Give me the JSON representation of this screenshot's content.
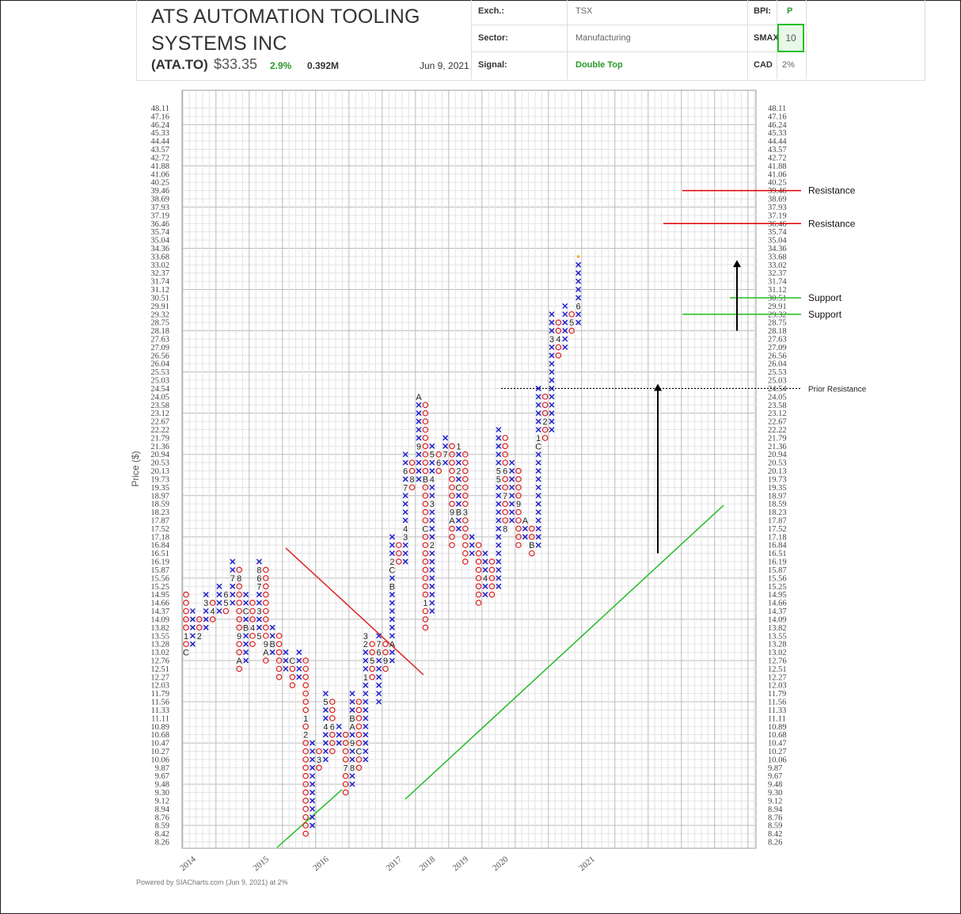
{
  "header": {
    "company": "ATS AUTOMATION TOOLING SYSTEMS INC",
    "title_line1": "ATS AUTOMATION TOOLING",
    "title_line2": "SYSTEMS INC",
    "ticker": "(ATA.TO)",
    "price": "$33.35",
    "change": "2.9%",
    "volume": "0.392M",
    "date": "Jun 9, 2021",
    "exch_label": "Exch.:",
    "exch_value": "TSX",
    "sector_label": "Sector:",
    "sector_value": "Manufacturing",
    "signal_label": "Signal:",
    "signal_value": "Double Top",
    "bpi_label": "BPI:",
    "bpi_value": "P",
    "smax_label": "SMAX",
    "smax_value": "10",
    "currency_label": "CAD",
    "box_size": "2%"
  },
  "footer": "Powered by SIACharts.com (Jun 9, 2021) at 2%",
  "colors": {
    "x": "#2222cc",
    "o": "#dd2222",
    "trend_up": "#22bb22",
    "trend_down": "#dd2222",
    "support": "#22bb22",
    "resistance": "#dd0000"
  },
  "chart_data": {
    "type": "point-and-figure",
    "ylabel": "Price ($)",
    "box_size": "2%",
    "price_levels": [
      8.26,
      8.42,
      8.59,
      8.76,
      8.94,
      9.12,
      9.3,
      9.48,
      9.67,
      9.87,
      10.06,
      10.27,
      10.47,
      10.68,
      10.89,
      11.11,
      11.33,
      11.56,
      11.79,
      12.03,
      12.27,
      12.51,
      12.76,
      13.02,
      13.28,
      13.55,
      13.82,
      14.09,
      14.37,
      14.66,
      14.95,
      15.25,
      15.56,
      15.87,
      16.19,
      16.51,
      16.84,
      17.18,
      17.52,
      17.87,
      18.23,
      18.59,
      18.97,
      19.35,
      19.73,
      20.13,
      20.53,
      20.94,
      21.36,
      21.79,
      22.22,
      22.67,
      23.12,
      23.58,
      24.05,
      24.54,
      25.03,
      25.53,
      26.04,
      26.56,
      27.09,
      27.63,
      28.18,
      28.75,
      29.32,
      29.91,
      30.51,
      31.12,
      31.74,
      32.37,
      33.02,
      33.68,
      34.36,
      35.04,
      35.74,
      36.46,
      37.19,
      37.93,
      38.69,
      39.46,
      40.25,
      41.06,
      41.88,
      42.72,
      43.57,
      44.44,
      45.33,
      46.24,
      47.16,
      48.11
    ],
    "year_labels": [
      {
        "label": "2014",
        "col": 0
      },
      {
        "label": "2015",
        "col": 11
      },
      {
        "label": "2016",
        "col": 20
      },
      {
        "label": "2017",
        "col": 31
      },
      {
        "label": "2018",
        "col": 36
      },
      {
        "label": "2019",
        "col": 41
      },
      {
        "label": "2020",
        "col": 47
      },
      {
        "label": "2021",
        "col": 60
      }
    ],
    "columns": [
      {
        "t": "O",
        "hi": 14.95,
        "lo": 13.02,
        "m": [
          [
            13.02,
            "C"
          ],
          [
            13.55,
            "1"
          ]
        ]
      },
      {
        "t": "X",
        "lo": 13.28,
        "hi": 14.37
      },
      {
        "t": "O",
        "hi": 14.09,
        "lo": 13.55,
        "m": [
          [
            13.55,
            "2"
          ]
        ]
      },
      {
        "t": "X",
        "lo": 13.82,
        "hi": 14.95,
        "m": [
          [
            14.66,
            "3"
          ]
        ]
      },
      {
        "t": "O",
        "hi": 14.66,
        "lo": 14.09,
        "m": [
          [
            14.37,
            "4"
          ]
        ]
      },
      {
        "t": "X",
        "lo": 14.37,
        "hi": 15.25
      },
      {
        "t": "O",
        "hi": 14.95,
        "lo": 14.37,
        "m": [
          [
            14.66,
            "5"
          ],
          [
            14.95,
            "6"
          ]
        ]
      },
      {
        "t": "X",
        "lo": 14.66,
        "hi": 16.19,
        "m": [
          [
            15.56,
            "7"
          ]
        ]
      },
      {
        "t": "O",
        "hi": 15.87,
        "lo": 12.51,
        "m": [
          [
            12.76,
            "A"
          ],
          [
            13.55,
            "9"
          ],
          [
            15.56,
            "8"
          ]
        ]
      },
      {
        "t": "X",
        "lo": 12.76,
        "hi": 14.95,
        "m": [
          [
            13.82,
            "B"
          ],
          [
            14.37,
            "C"
          ],
          [
            15.25,
            "1"
          ]
        ]
      },
      {
        "t": "O",
        "hi": 14.66,
        "lo": 13.28,
        "m": [
          [
            13.82,
            "4"
          ],
          [
            14.95,
            "2"
          ]
        ]
      },
      {
        "t": "X",
        "lo": 13.55,
        "hi": 16.19,
        "m": [
          [
            13.55,
            "5"
          ],
          [
            14.37,
            "3"
          ],
          [
            15.25,
            "7"
          ],
          [
            15.56,
            "6"
          ],
          [
            15.87,
            "8"
          ]
        ]
      },
      {
        "t": "O",
        "hi": 15.87,
        "lo": 12.76,
        "m": [
          [
            13.02,
            "A"
          ],
          [
            13.28,
            "9"
          ]
        ]
      },
      {
        "t": "X",
        "lo": 13.02,
        "hi": 13.82,
        "m": [
          [
            13.28,
            "B"
          ]
        ]
      },
      {
        "t": "O",
        "hi": 13.55,
        "lo": 12.27
      },
      {
        "t": "X",
        "lo": 12.51,
        "hi": 13.02
      },
      {
        "t": "O",
        "hi": 12.76,
        "lo": 12.03,
        "m": [
          [
            12.76,
            "C"
          ]
        ]
      },
      {
        "t": "X",
        "lo": 12.27,
        "hi": 13.02
      },
      {
        "t": "O",
        "hi": 12.76,
        "lo": 8.42,
        "m": [
          [
            10.68,
            "2"
          ],
          [
            11.11,
            "1"
          ]
        ]
      },
      {
        "t": "X",
        "lo": 8.59,
        "hi": 10.47
      },
      {
        "t": "O",
        "hi": 10.27,
        "lo": 9.87,
        "m": [
          [
            10.06,
            "3"
          ]
        ]
      },
      {
        "t": "X",
        "lo": 10.06,
        "hi": 11.79,
        "m": [
          [
            10.89,
            "4"
          ],
          [
            11.56,
            "5"
          ]
        ]
      },
      {
        "t": "O",
        "hi": 11.56,
        "lo": 10.27,
        "m": [
          [
            10.89,
            "6"
          ]
        ]
      },
      {
        "t": "X",
        "lo": 10.47,
        "hi": 10.89
      },
      {
        "t": "O",
        "hi": 10.68,
        "lo": 9.3,
        "m": [
          [
            9.87,
            "7"
          ]
        ]
      },
      {
        "t": "X",
        "lo": 9.48,
        "hi": 11.79,
        "m": [
          [
            9.87,
            "8"
          ],
          [
            10.47,
            "9"
          ],
          [
            10.89,
            "A"
          ],
          [
            11.11,
            "B"
          ]
        ]
      },
      {
        "t": "O",
        "hi": 11.56,
        "lo": 9.87,
        "m": [
          [
            10.27,
            "C"
          ]
        ]
      },
      {
        "t": "X",
        "lo": 10.06,
        "hi": 13.55,
        "m": [
          [
            12.27,
            "1"
          ],
          [
            13.28,
            "2"
          ],
          [
            13.55,
            "3"
          ]
        ]
      },
      {
        "t": "O",
        "hi": 13.28,
        "lo": 12.27,
        "m": [
          [
            12.76,
            "5"
          ]
        ]
      },
      {
        "t": "X",
        "lo": 11.56,
        "hi": 13.55,
        "m": [
          [
            13.02,
            "6"
          ],
          [
            13.28,
            "7"
          ]
        ]
      },
      {
        "t": "O",
        "hi": 13.28,
        "lo": 12.51,
        "m": [
          [
            12.76,
            "9"
          ]
        ]
      },
      {
        "t": "X",
        "lo": 12.76,
        "hi": 17.18,
        "m": [
          [
            13.28,
            "A"
          ],
          [
            15.25,
            "B"
          ],
          [
            15.87,
            "C"
          ],
          [
            16.19,
            "2"
          ]
        ]
      },
      {
        "t": "O",
        "hi": 16.84,
        "lo": 16.19
      },
      {
        "t": "X",
        "lo": 16.19,
        "hi": 20.94,
        "m": [
          [
            17.52,
            "4"
          ],
          [
            17.18,
            "3"
          ],
          [
            19.35,
            "7"
          ],
          [
            20.13,
            "6"
          ]
        ]
      },
      {
        "t": "O",
        "hi": 20.53,
        "lo": 19.35,
        "m": [
          [
            19.73,
            "8"
          ]
        ]
      },
      {
        "t": "X",
        "lo": 19.73,
        "hi": 24.05,
        "m": [
          [
            21.36,
            "9"
          ],
          [
            24.05,
            "A"
          ]
        ]
      },
      {
        "t": "O",
        "hi": 23.58,
        "lo": 13.82,
        "m": [
          [
            14.66,
            "1"
          ],
          [
            17.52,
            "C"
          ],
          [
            19.73,
            "B"
          ]
        ]
      },
      {
        "t": "X",
        "lo": 14.37,
        "hi": 21.36,
        "m": [
          [
            16.84,
            "2"
          ],
          [
            18.59,
            "3"
          ],
          [
            19.73,
            "4"
          ],
          [
            20.94,
            "5"
          ]
        ]
      },
      {
        "t": "O",
        "hi": 20.94,
        "lo": 20.13,
        "m": [
          [
            20.53,
            "6"
          ]
        ]
      },
      {
        "t": "X",
        "lo": 20.53,
        "hi": 21.79,
        "m": [
          [
            20.94,
            "7"
          ]
        ]
      },
      {
        "t": "O",
        "hi": 21.36,
        "lo": 16.84,
        "m": [
          [
            17.87,
            "A"
          ],
          [
            18.23,
            "9"
          ]
        ]
      },
      {
        "t": "X",
        "lo": 17.52,
        "hi": 21.36,
        "m": [
          [
            18.23,
            "B"
          ],
          [
            19.35,
            "C"
          ],
          [
            20.13,
            "2"
          ],
          [
            21.36,
            "1"
          ]
        ]
      },
      {
        "t": "O",
        "hi": 20.94,
        "lo": 16.19,
        "m": [
          [
            18.23,
            "3"
          ]
        ]
      },
      {
        "t": "X",
        "lo": 16.51,
        "hi": 17.18
      },
      {
        "t": "O",
        "hi": 16.84,
        "lo": 14.66
      },
      {
        "t": "X",
        "lo": 14.95,
        "hi": 16.51,
        "m": [
          [
            15.56,
            "4"
          ]
        ]
      },
      {
        "t": "O",
        "hi": 16.19,
        "lo": 14.95
      },
      {
        "t": "X",
        "lo": 15.25,
        "hi": 22.22,
        "m": [
          [
            19.73,
            "5"
          ],
          [
            20.13,
            "5"
          ]
        ]
      },
      {
        "t": "O",
        "hi": 21.79,
        "lo": 17.52,
        "m": [
          [
            17.52,
            "8"
          ],
          [
            20.13,
            "6"
          ],
          [
            18.97,
            "7"
          ]
        ]
      },
      {
        "t": "X",
        "lo": 17.87,
        "hi": 20.53
      },
      {
        "t": "O",
        "hi": 20.13,
        "lo": 16.84,
        "m": [
          [
            18.59,
            "9"
          ]
        ]
      },
      {
        "t": "X",
        "lo": 17.18,
        "hi": 17.87,
        "m": [
          [
            17.87,
            "A"
          ]
        ]
      },
      {
        "t": "O",
        "hi": 17.52,
        "lo": 16.51,
        "m": [
          [
            16.84,
            "B"
          ]
        ]
      },
      {
        "t": "X",
        "lo": 16.84,
        "hi": 24.54,
        "m": [
          [
            21.36,
            "C"
          ],
          [
            21.79,
            "1"
          ]
        ]
      },
      {
        "t": "O",
        "hi": 24.05,
        "lo": 21.79,
        "m": [
          [
            22.67,
            "2"
          ]
        ]
      },
      {
        "t": "X",
        "lo": 22.22,
        "hi": 29.32,
        "m": [
          [
            27.63,
            "3"
          ]
        ]
      },
      {
        "t": "O",
        "hi": 28.75,
        "lo": 26.56,
        "m": [
          [
            27.63,
            "4"
          ]
        ]
      },
      {
        "t": "X",
        "lo": 27.09,
        "hi": 29.91
      },
      {
        "t": "O",
        "hi": 29.32,
        "lo": 28.18,
        "m": [
          [
            28.75,
            "5"
          ]
        ]
      },
      {
        "t": "X",
        "lo": 28.75,
        "hi": 33.02,
        "m": [
          [
            29.91,
            "6"
          ]
        ]
      }
    ],
    "annotations": [
      {
        "label": "Resistance",
        "price": 39.46,
        "color": "#dd0000"
      },
      {
        "label": "Resistance",
        "price": 36.46,
        "color": "#dd0000"
      },
      {
        "label": "Support",
        "price": 30.51,
        "color": "#22bb22"
      },
      {
        "label": "Support",
        "price": 29.32,
        "color": "#22bb22"
      },
      {
        "label": "Prior Resistance",
        "price": 24.54,
        "style": "dotted"
      }
    ]
  }
}
